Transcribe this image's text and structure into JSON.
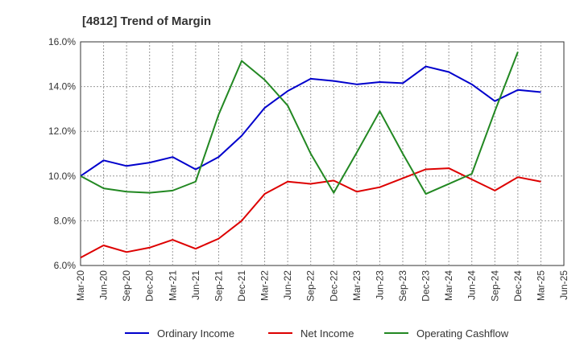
{
  "chart_data": {
    "type": "line",
    "title": "[4812]  Trend of Margin",
    "xlabel": "",
    "ylabel": "",
    "ylim": [
      6.0,
      16.0
    ],
    "yticks": [
      "6.0%",
      "8.0%",
      "10.0%",
      "12.0%",
      "14.0%",
      "16.0%"
    ],
    "ytick_values": [
      6,
      8,
      10,
      12,
      14,
      16
    ],
    "xtick_labels": [
      "Mar-20",
      "Jun-20",
      "Sep-20",
      "Dec-20",
      "Mar-21",
      "Jun-21",
      "Sep-21",
      "Dec-21",
      "Mar-22",
      "Jun-22",
      "Sep-22",
      "Dec-22",
      "Mar-23",
      "Jun-23",
      "Sep-23",
      "Dec-23",
      "Mar-24",
      "Jun-24",
      "Sep-24",
      "Dec-24",
      "Mar-25",
      "Jun-25"
    ],
    "grid": true,
    "legend_position": "bottom",
    "series": [
      {
        "name": "Ordinary Income",
        "color": "#0000cc",
        "values": [
          10.0,
          10.7,
          10.45,
          10.6,
          10.85,
          10.3,
          10.85,
          11.8,
          13.05,
          13.8,
          14.35,
          14.25,
          14.1,
          14.2,
          14.15,
          14.9,
          14.65,
          14.1,
          13.35,
          13.85,
          13.75,
          null
        ]
      },
      {
        "name": "Net Income",
        "color": "#dd0000",
        "values": [
          6.35,
          6.9,
          6.6,
          6.8,
          7.15,
          6.75,
          7.2,
          8.0,
          9.2,
          9.75,
          9.65,
          9.8,
          9.3,
          9.5,
          9.9,
          10.3,
          10.35,
          9.85,
          9.35,
          9.95,
          9.75,
          null
        ]
      },
      {
        "name": "Operating Cashflow",
        "color": "#228822",
        "values": [
          10.0,
          9.45,
          9.3,
          9.25,
          9.35,
          9.75,
          12.75,
          15.15,
          14.3,
          13.15,
          11.0,
          9.25,
          11.05,
          12.9,
          11.0,
          9.2,
          9.65,
          10.1,
          12.9,
          15.55,
          null,
          null
        ]
      }
    ]
  }
}
